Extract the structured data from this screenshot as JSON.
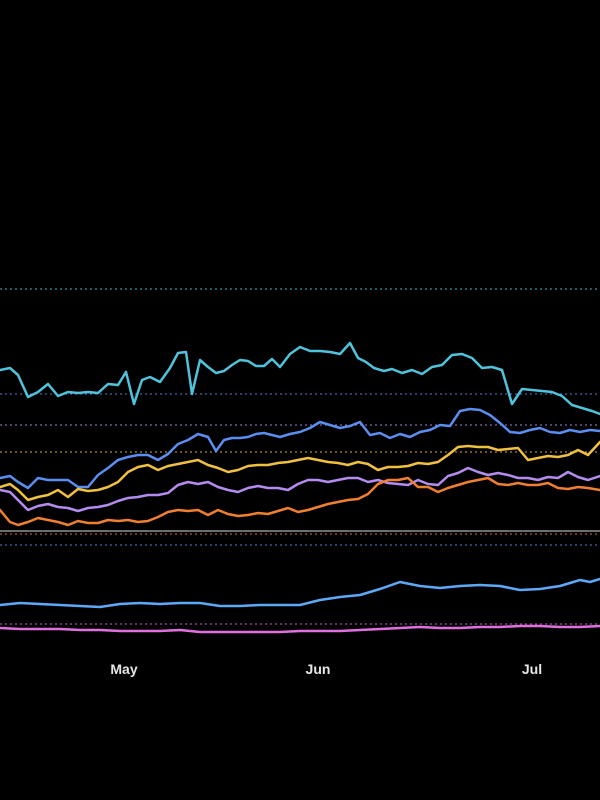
{
  "chart_data": {
    "type": "line",
    "title": "",
    "xlabel": "",
    "ylabel": "",
    "x_range": [
      0,
      600
    ],
    "y_range": [
      0,
      800
    ],
    "x_ticks": [
      {
        "label": "May",
        "x": 124
      },
      {
        "label": "Jun",
        "x": 318
      },
      {
        "label": "Jul",
        "x": 532
      }
    ],
    "reference_lines": [
      {
        "name": "ref-cyan",
        "y": 289,
        "color": "#4fc3dc",
        "style": "dotted"
      },
      {
        "name": "ref-blue",
        "y": 394,
        "color": "#5b8ef0",
        "style": "dotted"
      },
      {
        "name": "ref-purple",
        "y": 425,
        "color": "#b48cf0",
        "style": "dotted"
      },
      {
        "name": "ref-yellow",
        "y": 452,
        "color": "#f0c040",
        "style": "dotted"
      },
      {
        "name": "ref-orange",
        "y": 534,
        "color": "#f08030",
        "style": "dotted"
      },
      {
        "name": "ref-white",
        "y": 531,
        "color": "#d0d0d0",
        "style": "solid"
      },
      {
        "name": "ref-lightblue",
        "y": 545,
        "color": "#5b8ef0",
        "style": "dotted"
      },
      {
        "name": "ref-pink",
        "y": 624,
        "color": "#e070e0",
        "style": "dotted"
      }
    ],
    "series": [
      {
        "color": "#4fc3dc",
        "x": [
          0,
          10,
          18,
          28,
          38,
          48,
          58,
          68,
          78,
          88,
          98,
          108,
          118,
          126,
          134,
          142,
          150,
          160,
          170,
          178,
          186,
          192,
          200,
          208,
          216,
          224,
          232,
          240,
          248,
          256,
          264,
          272,
          280,
          290,
          300,
          310,
          320,
          330,
          340,
          350,
          358,
          366,
          374,
          384,
          392,
          402,
          412,
          422,
          432,
          442,
          452,
          462,
          472,
          482,
          492,
          502,
          512,
          522,
          532,
          542,
          552,
          562,
          572,
          582,
          592,
          600
        ],
        "y": [
          370,
          368,
          375,
          397,
          392,
          384,
          396,
          392,
          393,
          392,
          393,
          384,
          385,
          372,
          404,
          380,
          377,
          382,
          368,
          353,
          352,
          394,
          360,
          367,
          373,
          371,
          365,
          360,
          361,
          366,
          366,
          359,
          367,
          354,
          347,
          351,
          351,
          352,
          354,
          343,
          358,
          362,
          368,
          371,
          369,
          373,
          370,
          374,
          367,
          365,
          355,
          354,
          358,
          368,
          367,
          370,
          404,
          389,
          390,
          391,
          392,
          396,
          405,
          408,
          411,
          414
        ]
      },
      {
        "color": "#5b8ef0",
        "x": [
          0,
          10,
          18,
          28,
          38,
          48,
          58,
          68,
          78,
          88,
          98,
          108,
          118,
          128,
          138,
          148,
          158,
          168,
          178,
          188,
          198,
          208,
          216,
          224,
          232,
          240,
          248,
          256,
          264,
          272,
          280,
          290,
          300,
          310,
          320,
          330,
          340,
          350,
          360,
          370,
          380,
          390,
          400,
          410,
          420,
          430,
          440,
          450,
          460,
          470,
          480,
          490,
          500,
          510,
          520,
          530,
          540,
          550,
          560,
          570,
          580,
          590,
          600
        ],
        "y": [
          478,
          476,
          482,
          488,
          478,
          480,
          480,
          480,
          487,
          487,
          475,
          468,
          460,
          457,
          455,
          455,
          460,
          454,
          444,
          440,
          434,
          437,
          451,
          440,
          438,
          438,
          437,
          434,
          433,
          435,
          437,
          434,
          432,
          428,
          422,
          425,
          428,
          426,
          422,
          435,
          433,
          438,
          434,
          437,
          432,
          430,
          425,
          426,
          411,
          409,
          410,
          415,
          423,
          432,
          433,
          430,
          428,
          432,
          433,
          430,
          432,
          430,
          431
        ]
      },
      {
        "color": "#f0c040",
        "x": [
          0,
          10,
          18,
          28,
          38,
          48,
          58,
          68,
          78,
          88,
          98,
          108,
          118,
          128,
          138,
          148,
          158,
          168,
          178,
          188,
          198,
          208,
          218,
          228,
          238,
          248,
          258,
          268,
          278,
          288,
          298,
          308,
          318,
          328,
          338,
          348,
          358,
          368,
          378,
          388,
          398,
          408,
          418,
          428,
          438,
          448,
          458,
          468,
          478,
          488,
          498,
          508,
          518,
          528,
          538,
          548,
          558,
          568,
          578,
          588,
          600
        ],
        "y": [
          487,
          484,
          490,
          500,
          497,
          495,
          490,
          497,
          489,
          491,
          490,
          487,
          482,
          472,
          467,
          465,
          470,
          466,
          464,
          462,
          460,
          465,
          468,
          472,
          470,
          466,
          465,
          465,
          463,
          462,
          460,
          458,
          460,
          462,
          463,
          465,
          462,
          464,
          470,
          467,
          467,
          466,
          463,
          464,
          462,
          455,
          447,
          446,
          447,
          447,
          450,
          449,
          448,
          460,
          458,
          456,
          457,
          455,
          450,
          455,
          442
        ]
      },
      {
        "color": "#b48cf0",
        "x": [
          0,
          10,
          18,
          28,
          38,
          48,
          58,
          68,
          78,
          88,
          98,
          108,
          118,
          128,
          138,
          148,
          158,
          168,
          178,
          188,
          198,
          208,
          218,
          228,
          238,
          248,
          258,
          268,
          278,
          288,
          298,
          308,
          318,
          328,
          338,
          348,
          358,
          368,
          378,
          388,
          398,
          408,
          418,
          428,
          438,
          448,
          458,
          468,
          478,
          488,
          498,
          508,
          518,
          528,
          538,
          548,
          558,
          568,
          578,
          588,
          600
        ],
        "y": [
          490,
          492,
          500,
          510,
          506,
          504,
          507,
          508,
          511,
          508,
          507,
          505,
          501,
          498,
          497,
          495,
          495,
          493,
          485,
          482,
          484,
          482,
          487,
          490,
          492,
          488,
          486,
          488,
          488,
          490,
          484,
          480,
          480,
          482,
          480,
          478,
          478,
          482,
          480,
          483,
          484,
          485,
          480,
          484,
          485,
          476,
          473,
          468,
          472,
          475,
          473,
          475,
          478,
          478,
          480,
          477,
          478,
          472,
          477,
          480,
          476
        ]
      },
      {
        "color": "#f08030",
        "x": [
          0,
          10,
          18,
          28,
          38,
          48,
          58,
          68,
          78,
          88,
          98,
          108,
          118,
          128,
          138,
          148,
          158,
          168,
          178,
          188,
          198,
          208,
          218,
          228,
          238,
          248,
          258,
          268,
          278,
          288,
          298,
          308,
          318,
          328,
          338,
          348,
          358,
          368,
          378,
          388,
          398,
          408,
          418,
          428,
          438,
          448,
          458,
          468,
          478,
          488,
          498,
          508,
          518,
          528,
          538,
          548,
          558,
          568,
          578,
          588,
          600
        ],
        "y": [
          510,
          522,
          525,
          522,
          518,
          520,
          522,
          525,
          521,
          523,
          523,
          520,
          521,
          520,
          522,
          521,
          517,
          512,
          510,
          511,
          510,
          515,
          510,
          514,
          516,
          515,
          513,
          514,
          511,
          508,
          512,
          510,
          507,
          504,
          502,
          500,
          499,
          494,
          484,
          480,
          480,
          478,
          487,
          487,
          492,
          488,
          485,
          482,
          480,
          478,
          484,
          485,
          483,
          485,
          485,
          483,
          488,
          489,
          487,
          488,
          490
        ]
      },
      {
        "color": "#5ea8f8",
        "x": [
          0,
          20,
          40,
          60,
          80,
          100,
          120,
          140,
          160,
          180,
          200,
          220,
          240,
          260,
          280,
          300,
          320,
          340,
          360,
          380,
          400,
          420,
          440,
          460,
          480,
          500,
          520,
          540,
          560,
          580,
          590,
          600
        ],
        "y": [
          605,
          603,
          604,
          605,
          606,
          607,
          604,
          603,
          604,
          603,
          603,
          606,
          606,
          605,
          605,
          605,
          600,
          597,
          595,
          589,
          582,
          586,
          588,
          586,
          585,
          586,
          590,
          589,
          586,
          580,
          582,
          579
        ]
      },
      {
        "color": "#e070e0",
        "x": [
          0,
          20,
          40,
          60,
          80,
          100,
          120,
          140,
          160,
          180,
          200,
          220,
          240,
          260,
          280,
          300,
          320,
          340,
          360,
          380,
          400,
          420,
          440,
          460,
          480,
          500,
          520,
          540,
          560,
          580,
          600
        ],
        "y": [
          628,
          629,
          629,
          629,
          630,
          630,
          631,
          631,
          631,
          630,
          632,
          632,
          632,
          632,
          632,
          631,
          631,
          631,
          630,
          629,
          628,
          627,
          628,
          628,
          627,
          627,
          626,
          626,
          627,
          627,
          626
        ]
      }
    ]
  }
}
